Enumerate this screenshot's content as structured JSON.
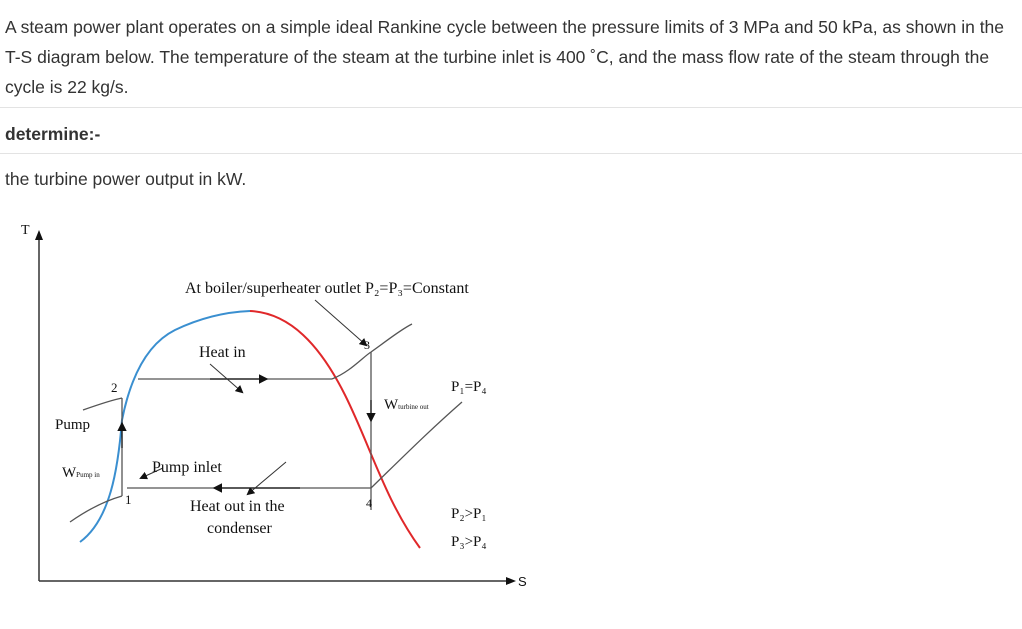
{
  "question": {
    "intro": "A steam power plant operates on a simple ideal Rankine cycle between the pressure limits of 3 MPa and 50 kPa, as shown in the T-S diagram below. The temperature of the steam at the turbine inlet is 400 ˚C, and the mass flow rate of the steam through the cycle is 22 kg/s.",
    "determine_label": "determine:-",
    "task": "the turbine power output in kW."
  },
  "diagram": {
    "axis_t": "T",
    "axis_s": "S",
    "boiler_label": "At boiler/superheater outlet  P₂=P₃=Constant",
    "heat_in": "Heat in",
    "pump": "Pump",
    "w_pump_main": "W",
    "w_pump_sub": "Pump in",
    "pump_inlet": "Pump inlet",
    "heat_out_line1": "Heat out in the",
    "heat_out_line2": "condenser",
    "w_turbine_main": "W",
    "w_turbine_sub": "turbine out",
    "p1_p4": "P₁=P₄",
    "p2_gt_p1": "P₂>P₁",
    "p3_gt_p4": "P₃>P₄",
    "state_1": "1",
    "state_2": "2",
    "state_3": "3",
    "state_4": "4",
    "colors": {
      "dome_left": "#3a8fd0",
      "dome_right": "#e0282a",
      "lines": "#555555"
    }
  }
}
